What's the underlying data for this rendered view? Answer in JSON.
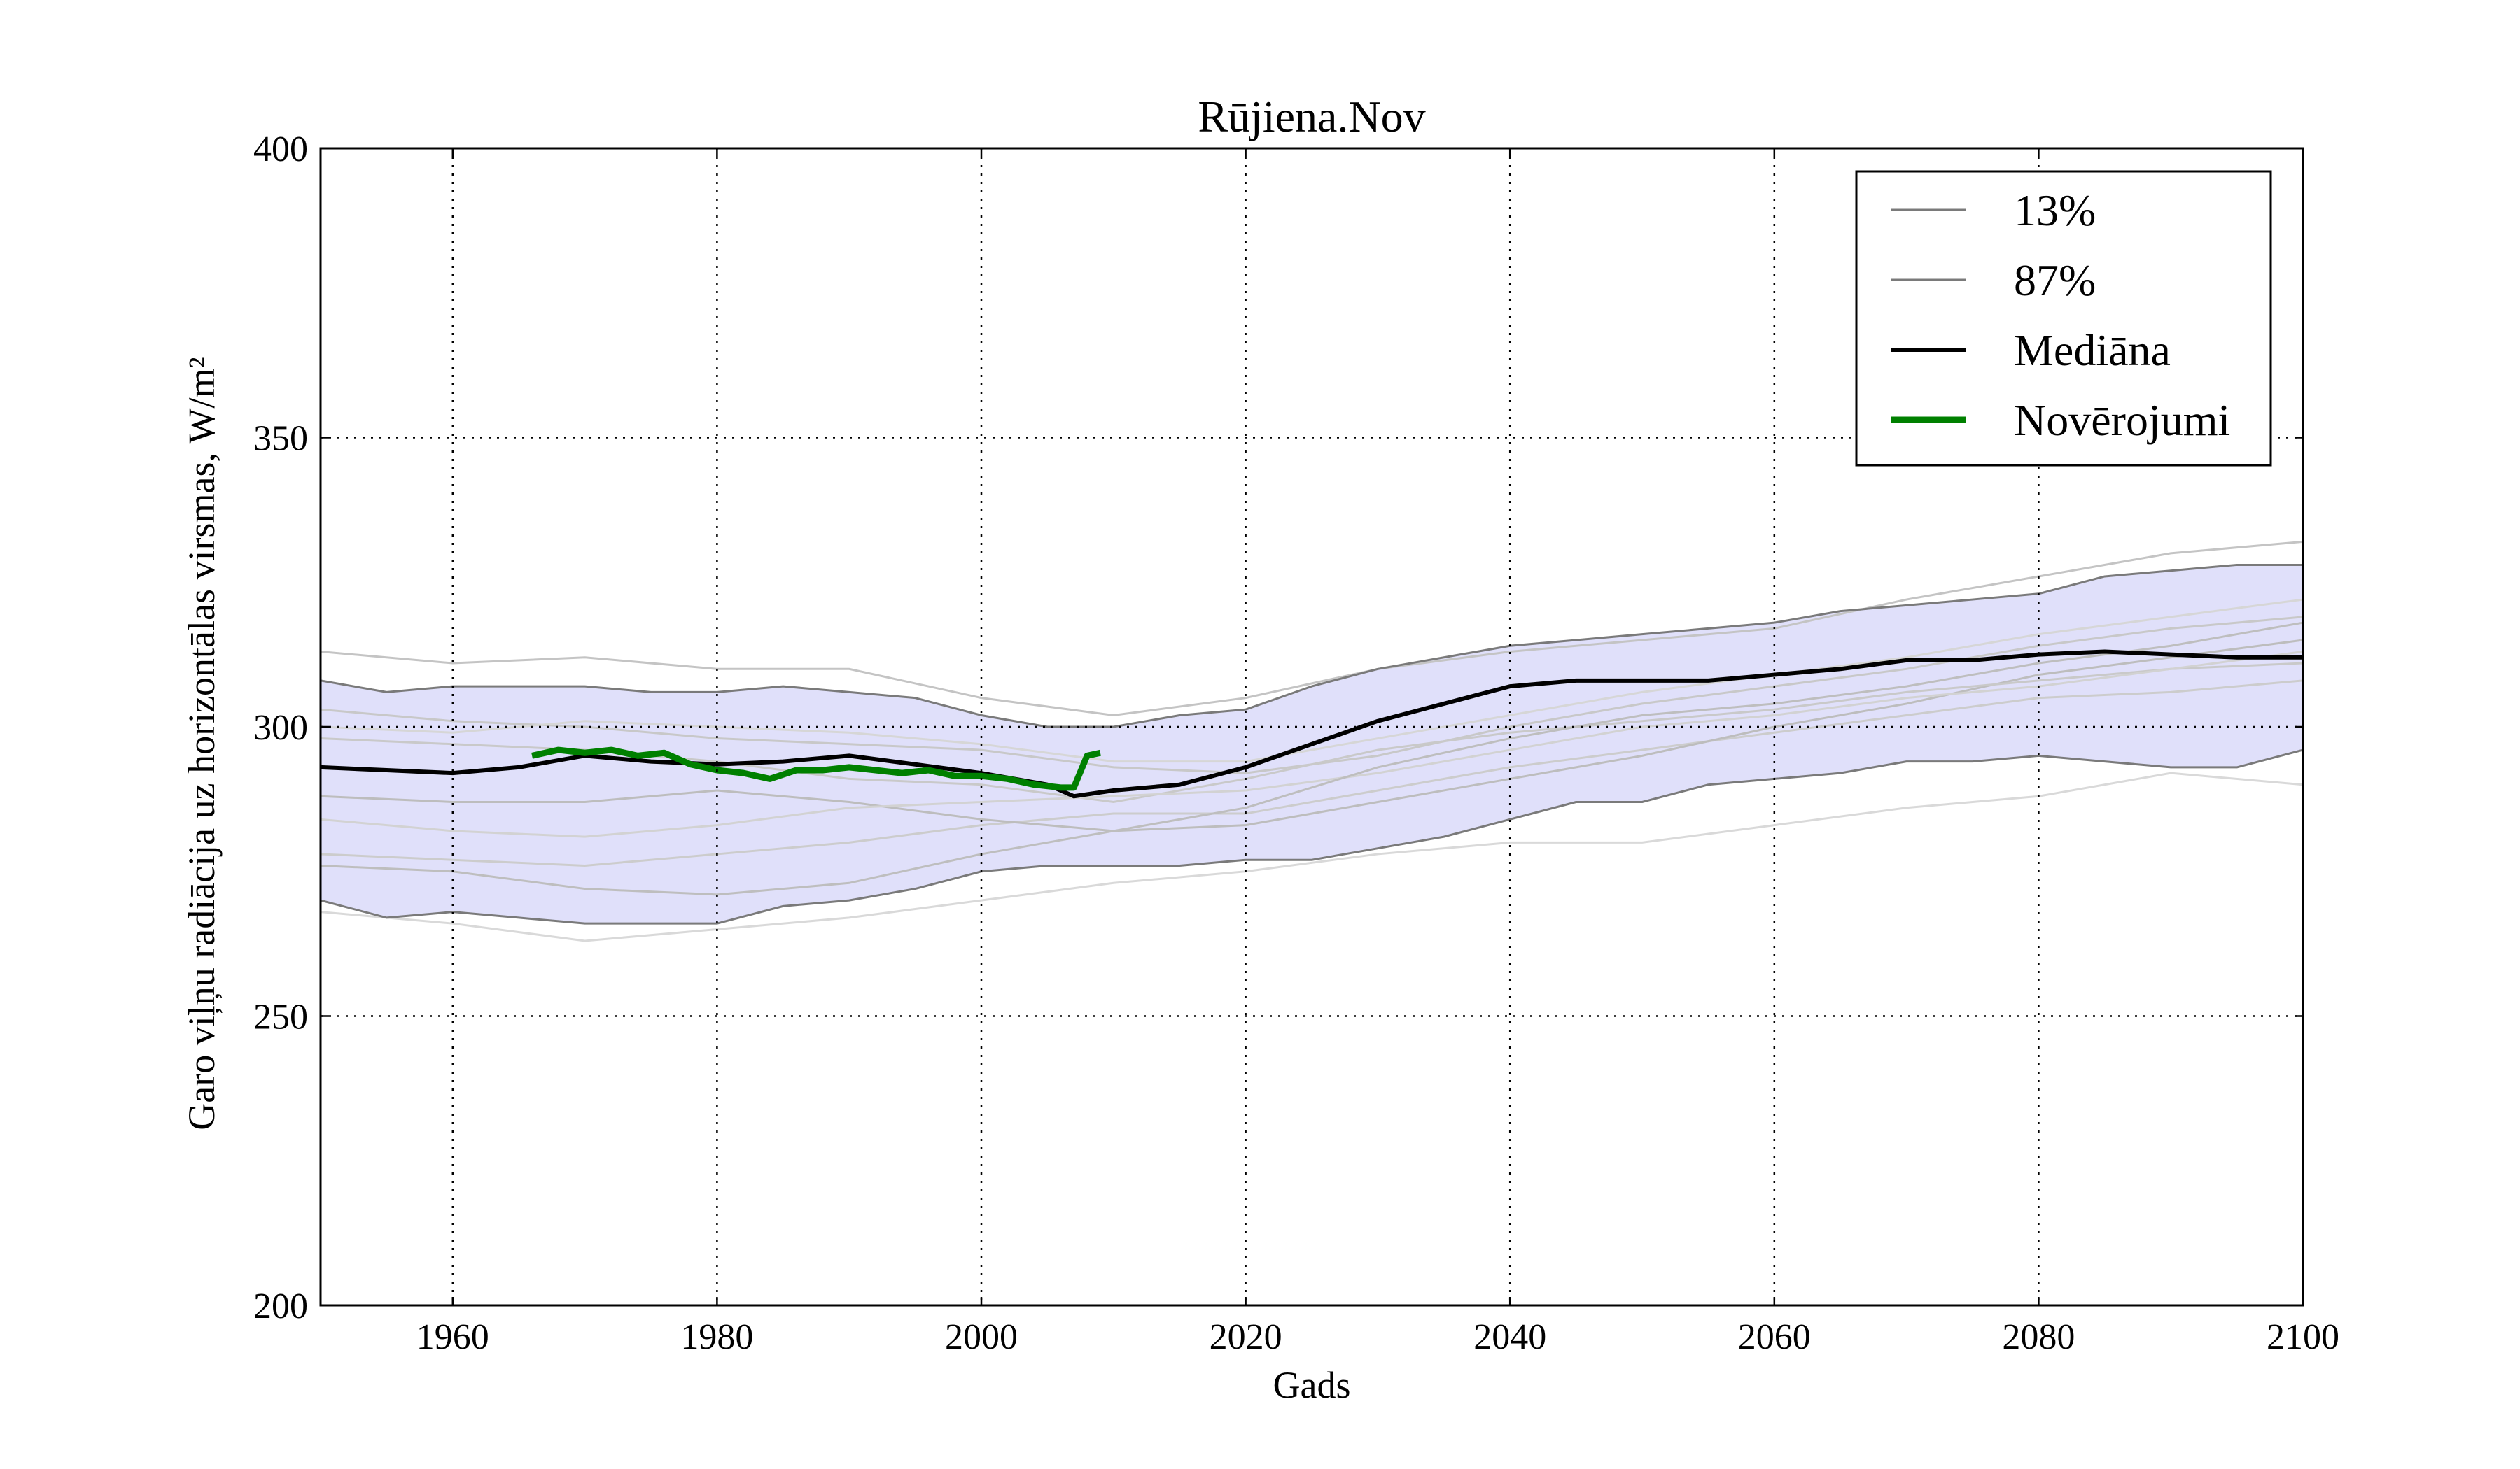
{
  "chart_data": {
    "type": "line",
    "title": "Rūjiena.Nov",
    "xlabel": "Gads",
    "ylabel": "Garo viļņu radiācija uz horizontālas virsmas, W/m²",
    "xlim": [
      1950,
      2100
    ],
    "ylim": [
      200,
      400
    ],
    "xticks": [
      "1960",
      "1980",
      "2000",
      "2020",
      "2040",
      "2060",
      "2080",
      "2100"
    ],
    "yticks": [
      "200",
      "250",
      "300",
      "350",
      "400"
    ],
    "grid": true,
    "legend_position": "top-right",
    "band": {
      "fill_color": "#e0e0fa",
      "x": [
        1950,
        1955,
        1960,
        1965,
        1970,
        1975,
        1980,
        1985,
        1990,
        1995,
        2000,
        2005,
        2010,
        2015,
        2020,
        2025,
        2030,
        2035,
        2040,
        2045,
        2050,
        2055,
        2060,
        2065,
        2070,
        2075,
        2080,
        2085,
        2090,
        2095,
        2100
      ],
      "lower": [
        270,
        267,
        268,
        267,
        266,
        266,
        266,
        269,
        270,
        272,
        275,
        276,
        276,
        276,
        277,
        277,
        279,
        281,
        284,
        287,
        287,
        290,
        291,
        292,
        294,
        294,
        295,
        294,
        293,
        293,
        296
      ],
      "upper": [
        308,
        306,
        307,
        307,
        307,
        306,
        306,
        307,
        306,
        305,
        302,
        300,
        300,
        302,
        303,
        307,
        310,
        312,
        314,
        315,
        316,
        317,
        318,
        320,
        321,
        322,
        323,
        326,
        327,
        328,
        328
      ]
    },
    "series": [
      {
        "name": "13%",
        "color": "#7a7a7a",
        "width": 3,
        "x": [
          1950,
          1955,
          1960,
          1965,
          1970,
          1975,
          1980,
          1985,
          1990,
          1995,
          2000,
          2005,
          2010,
          2015,
          2020,
          2025,
          2030,
          2035,
          2040,
          2045,
          2050,
          2055,
          2060,
          2065,
          2070,
          2075,
          2080,
          2085,
          2090,
          2095,
          2100
        ],
        "values": [
          270,
          267,
          268,
          267,
          266,
          266,
          266,
          269,
          270,
          272,
          275,
          276,
          276,
          276,
          277,
          277,
          279,
          281,
          284,
          287,
          287,
          290,
          291,
          292,
          294,
          294,
          295,
          294,
          293,
          293,
          296
        ]
      },
      {
        "name": "87%",
        "color": "#7a7a7a",
        "width": 3,
        "x": [
          1950,
          1955,
          1960,
          1965,
          1970,
          1975,
          1980,
          1985,
          1990,
          1995,
          2000,
          2005,
          2010,
          2015,
          2020,
          2025,
          2030,
          2035,
          2040,
          2045,
          2050,
          2055,
          2060,
          2065,
          2070,
          2075,
          2080,
          2085,
          2090,
          2095,
          2100
        ],
        "values": [
          308,
          306,
          307,
          307,
          307,
          306,
          306,
          307,
          306,
          305,
          302,
          300,
          300,
          302,
          303,
          307,
          310,
          312,
          314,
          315,
          316,
          317,
          318,
          320,
          321,
          322,
          323,
          326,
          327,
          328,
          328
        ]
      },
      {
        "name": "Mediāna",
        "color": "#000000",
        "width": 6,
        "x": [
          1950,
          1955,
          1960,
          1965,
          1970,
          1975,
          1980,
          1985,
          1990,
          1995,
          2000,
          2005,
          2007,
          2010,
          2015,
          2020,
          2025,
          2030,
          2035,
          2040,
          2045,
          2050,
          2055,
          2060,
          2065,
          2070,
          2075,
          2080,
          2085,
          2090,
          2095,
          2100
        ],
        "values": [
          293,
          292.5,
          292,
          293,
          295,
          294,
          293.5,
          294,
          295,
          293.5,
          292,
          290,
          288,
          289,
          290,
          293,
          297,
          301,
          304,
          307,
          308,
          308,
          308,
          309,
          310,
          311.5,
          311.5,
          312.5,
          313,
          312.5,
          312,
          312
        ]
      },
      {
        "name": "Novērojumi",
        "color": "#008000",
        "width": 9,
        "x": [
          1966,
          1968,
          1970,
          1972,
          1974,
          1976,
          1978,
          1980,
          1982,
          1984,
          1986,
          1988,
          1990,
          1992,
          1994,
          1996,
          1998,
          2000,
          2002,
          2004,
          2006,
          2007,
          2008,
          2009
        ],
        "values": [
          295,
          296,
          295.5,
          296,
          295,
          295.5,
          293.5,
          292.5,
          292,
          291,
          292.5,
          292.5,
          293,
          292.5,
          292,
          292.5,
          291.5,
          291.5,
          291,
          290,
          289.5,
          289.5,
          295,
          295.5
        ]
      }
    ],
    "ensemble_members": [
      {
        "color": "#c4c4c4",
        "x": [
          1950,
          1960,
          1970,
          1980,
          1990,
          2000,
          2010,
          2020,
          2030,
          2040,
          2050,
          2060,
          2070,
          2080,
          2090,
          2100
        ],
        "values": [
          313,
          311,
          312,
          310,
          310,
          305,
          302,
          305,
          310,
          313,
          315,
          317,
          322,
          326,
          330,
          332
        ]
      },
      {
        "color": "#d9d9d9",
        "x": [
          1950,
          1960,
          1970,
          1980,
          1990,
          2000,
          2010,
          2020,
          2030,
          2040,
          2050,
          2060,
          2070,
          2080,
          2090,
          2100
        ],
        "values": [
          268,
          266,
          263,
          265,
          267,
          270,
          273,
          275,
          278,
          280,
          280,
          283,
          286,
          288,
          292,
          290
        ]
      },
      {
        "color": "#c8c8c8",
        "x": [
          1950,
          1960,
          1970,
          1980,
          1990,
          2000,
          2010,
          2020,
          2030,
          2040,
          2050,
          2060,
          2070,
          2080,
          2090,
          2100
        ],
        "values": [
          303,
          301,
          300,
          298,
          297,
          296,
          293,
          292,
          295,
          300,
          304,
          307,
          310,
          314,
          317,
          319
        ]
      },
      {
        "color": "#cccccc",
        "x": [
          1950,
          1960,
          1970,
          1980,
          1990,
          2000,
          2010,
          2020,
          2030,
          2040,
          2050,
          2060,
          2070,
          2080,
          2090,
          2100
        ],
        "values": [
          278,
          277,
          276,
          278,
          280,
          283,
          285,
          285,
          289,
          293,
          296,
          299,
          302,
          305,
          306,
          308
        ]
      },
      {
        "color": "#bdbdbd",
        "x": [
          1950,
          1960,
          1970,
          1980,
          1990,
          2000,
          2010,
          2020,
          2030,
          2040,
          2050,
          2060,
          2070,
          2080,
          2090,
          2100
        ],
        "values": [
          288,
          287,
          287,
          289,
          287,
          284,
          282,
          283,
          287,
          291,
          295,
          300,
          304,
          309,
          312,
          315
        ]
      },
      {
        "color": "#c9c9c9",
        "x": [
          1950,
          1960,
          1970,
          1980,
          1990,
          2000,
          2010,
          2020,
          2030,
          2040,
          2050,
          2060,
          2070,
          2080,
          2090,
          2100
        ],
        "values": [
          298,
          297,
          296,
          294,
          291,
          290,
          287,
          291,
          296,
          299,
          301,
          303,
          306,
          308,
          310,
          311
        ]
      },
      {
        "color": "#d2d2d2",
        "x": [
          1950,
          1960,
          1970,
          1980,
          1990,
          2000,
          2010,
          2020,
          2030,
          2040,
          2050,
          2060,
          2070,
          2080,
          2090,
          2100
        ],
        "values": [
          284,
          282,
          281,
          283,
          286,
          287,
          288,
          289,
          292,
          296,
          300,
          302,
          305,
          307,
          310,
          313
        ]
      },
      {
        "color": "#bebebe",
        "x": [
          1950,
          1960,
          1970,
          1980,
          1990,
          2000,
          2010,
          2020,
          2030,
          2040,
          2050,
          2060,
          2070,
          2080,
          2090,
          2100
        ],
        "values": [
          276,
          275,
          272,
          271,
          273,
          278,
          282,
          286,
          293,
          298,
          302,
          304,
          307,
          311,
          314,
          318
        ]
      },
      {
        "color": "#d6d6d6",
        "x": [
          1950,
          1960,
          1970,
          1980,
          1990,
          2000,
          2010,
          2020,
          2030,
          2040,
          2050,
          2060,
          2070,
          2080,
          2090,
          2100
        ],
        "values": [
          300,
          299,
          301,
          300,
          299,
          297,
          294,
          294,
          298,
          302,
          306,
          309,
          312,
          316,
          319,
          322
        ]
      }
    ]
  }
}
